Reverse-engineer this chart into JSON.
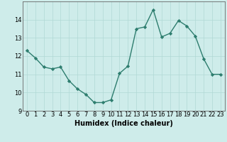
{
  "x": [
    0,
    1,
    2,
    3,
    4,
    5,
    6,
    7,
    8,
    9,
    10,
    11,
    12,
    13,
    14,
    15,
    16,
    17,
    18,
    19,
    20,
    21,
    22,
    23
  ],
  "y": [
    12.3,
    11.9,
    11.4,
    11.3,
    11.4,
    10.65,
    10.2,
    9.9,
    9.45,
    9.45,
    9.6,
    11.05,
    11.45,
    13.5,
    13.6,
    14.55,
    13.05,
    13.25,
    13.95,
    13.65,
    13.1,
    11.85,
    11.0,
    11.0
  ],
  "line_color": "#2d7d6e",
  "marker": "D",
  "marker_size": 2.2,
  "bg_color": "#ceecea",
  "grid_color": "#b0d8d5",
  "xlabel": "Humidex (Indice chaleur)",
  "ylim": [
    9,
    15
  ],
  "xlim": [
    -0.5,
    23.5
  ],
  "yticks": [
    9,
    10,
    11,
    12,
    13,
    14
  ],
  "xticks": [
    0,
    1,
    2,
    3,
    4,
    5,
    6,
    7,
    8,
    9,
    10,
    11,
    12,
    13,
    14,
    15,
    16,
    17,
    18,
    19,
    20,
    21,
    22,
    23
  ],
  "xtick_labels": [
    "0",
    "1",
    "2",
    "3",
    "4",
    "5",
    "6",
    "7",
    "8",
    "9",
    "10",
    "11",
    "12",
    "13",
    "14",
    "15",
    "16",
    "17",
    "18",
    "19",
    "20",
    "21",
    "22",
    "23"
  ],
  "xlabel_fontsize": 7,
  "tick_fontsize": 6,
  "line_width": 1.0
}
